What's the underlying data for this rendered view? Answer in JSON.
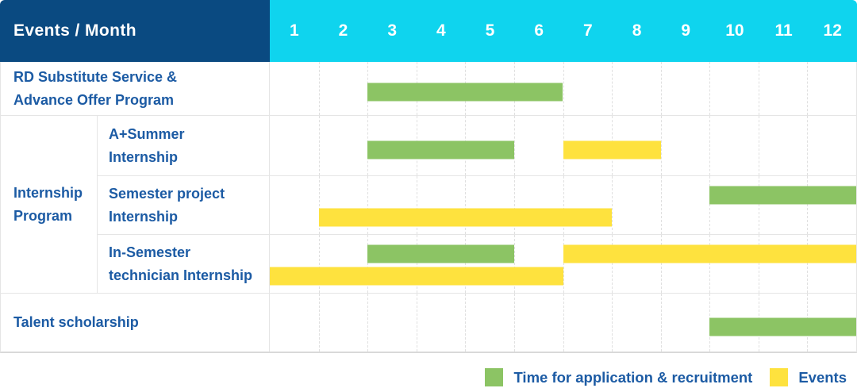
{
  "table": {
    "header": {
      "label": "Events / Month",
      "months": [
        "1",
        "2",
        "3",
        "4",
        "5",
        "6",
        "7",
        "8",
        "9",
        "10",
        "11",
        "12"
      ]
    },
    "group": {
      "label_lines": [
        "Internship",
        "Program"
      ]
    },
    "rows": [
      {
        "name": "rd-substitute-service-advance-offer-program",
        "label_lines": [
          "RD Substitute Service &",
          "Advance Offer Program"
        ],
        "section": "main",
        "lane_count": 1,
        "bars": [
          {
            "type": "application",
            "start": 3,
            "end": 6,
            "lane": 0
          }
        ]
      },
      {
        "name": "a-summer-internship",
        "label_lines": [
          "A+Summer",
          "Internship"
        ],
        "section": "internship-program",
        "lane_count": 1,
        "bars": [
          {
            "type": "application",
            "start": 3,
            "end": 5,
            "lane": 0
          },
          {
            "type": "events",
            "start": 7,
            "end": 8,
            "lane": 0
          }
        ]
      },
      {
        "name": "semester-project-internship",
        "label_lines": [
          "Semester project",
          "Internship"
        ],
        "section": "internship-program",
        "lane_count": 2,
        "bars": [
          {
            "type": "application",
            "start": 10,
            "end": 12,
            "lane": 0
          },
          {
            "type": "events",
            "start": 2,
            "end": 7,
            "lane": 1
          }
        ]
      },
      {
        "name": "in-semester-technician-internship",
        "label_lines": [
          "In-Semester",
          "technician Internship"
        ],
        "section": "internship-program",
        "lane_count": 2,
        "bars": [
          {
            "type": "application",
            "start": 3,
            "end": 5,
            "lane": 0
          },
          {
            "type": "events",
            "start": 7,
            "end": 12,
            "lane": 0
          },
          {
            "type": "events",
            "start": 1,
            "end": 6,
            "lane": 1
          }
        ]
      },
      {
        "name": "talent-scholarship",
        "label_lines": [
          "Talent scholarship"
        ],
        "section": "main",
        "lane_count": 1,
        "bars": [
          {
            "type": "application",
            "start": 10,
            "end": 12,
            "lane": 0
          }
        ]
      }
    ]
  },
  "legend": [
    {
      "type": "application",
      "label": "Time for application & recruitment"
    },
    {
      "type": "events",
      "label": "Events"
    }
  ],
  "colors": {
    "application": "#8cc464",
    "events": "#fee23e",
    "header_navy": "#0a4a81",
    "header_cyan": "#0fd4ee",
    "label_text": "#1c5ba4"
  },
  "chart_data": {
    "type": "bar",
    "subtype": "gantt-schedule",
    "title": "Events / Month",
    "x_axis": {
      "label": "Month",
      "ticks": [
        1,
        2,
        3,
        4,
        5,
        6,
        7,
        8,
        9,
        10,
        11,
        12
      ],
      "range": [
        1,
        12
      ]
    },
    "grid": true,
    "legend_position": "bottom-right",
    "series_legend": [
      "Time for application & recruitment",
      "Events"
    ],
    "rows": [
      {
        "event": "RD Substitute Service & Advance Offer Program",
        "group": null,
        "bars": [
          {
            "series": "Time for application & recruitment",
            "start_month": 3,
            "end_month": 6
          }
        ]
      },
      {
        "event": "A+Summer Internship",
        "group": "Internship Program",
        "bars": [
          {
            "series": "Time for application & recruitment",
            "start_month": 3,
            "end_month": 5
          },
          {
            "series": "Events",
            "start_month": 7,
            "end_month": 8
          }
        ]
      },
      {
        "event": "Semester project Internship",
        "group": "Internship Program",
        "bars": [
          {
            "series": "Time for application & recruitment",
            "start_month": 10,
            "end_month": 12
          },
          {
            "series": "Events",
            "start_month": 2,
            "end_month": 7
          }
        ]
      },
      {
        "event": "In-Semester technician Internship",
        "group": "Internship Program",
        "bars": [
          {
            "series": "Time for application & recruitment",
            "start_month": 3,
            "end_month": 5
          },
          {
            "series": "Events",
            "start_month": 7,
            "end_month": 12
          },
          {
            "series": "Events",
            "start_month": 1,
            "end_month": 6
          }
        ]
      },
      {
        "event": "Talent scholarship",
        "group": null,
        "bars": [
          {
            "series": "Time for application & recruitment",
            "start_month": 10,
            "end_month": 12
          }
        ]
      }
    ]
  }
}
